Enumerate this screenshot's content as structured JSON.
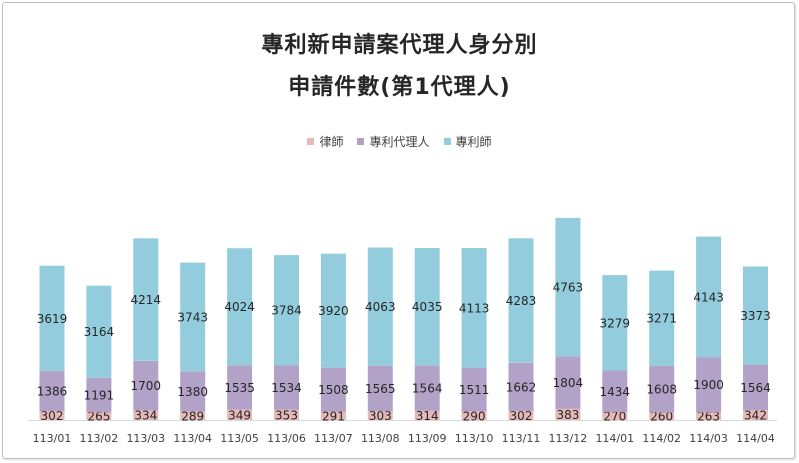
{
  "chart_data": {
    "type": "bar",
    "stacked": true,
    "title": "專利新申請案代理人身分別",
    "subtitle": "申請件數(第1代理人)",
    "legend_position": "top",
    "categories": [
      "113/01",
      "113/02",
      "113/03",
      "113/04",
      "113/05",
      "113/06",
      "113/07",
      "113/08",
      "113/09",
      "113/10",
      "113/11",
      "113/12",
      "114/01",
      "114/02",
      "114/03",
      "114/04"
    ],
    "series": [
      {
        "name": "律師",
        "color": "#e6b9b8",
        "values": [
          302,
          265,
          334,
          289,
          349,
          353,
          291,
          303,
          314,
          290,
          302,
          383,
          270,
          260,
          263,
          342
        ]
      },
      {
        "name": "專利代理人",
        "color": "#b3a2c7",
        "values": [
          1386,
          1191,
          1700,
          1380,
          1535,
          1534,
          1508,
          1565,
          1564,
          1511,
          1662,
          1804,
          1434,
          1608,
          1900,
          1564
        ]
      },
      {
        "name": "專利師",
        "color": "#93cddd",
        "values": [
          3619,
          3164,
          4214,
          3743,
          4024,
          3784,
          3920,
          4063,
          4035,
          4113,
          4283,
          4763,
          3279,
          3271,
          4143,
          3373
        ]
      }
    ],
    "grid": false
  }
}
